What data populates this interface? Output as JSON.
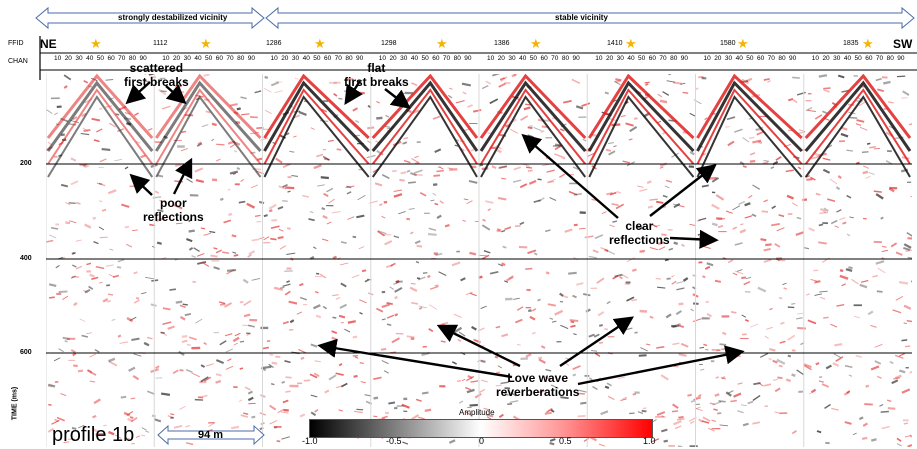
{
  "header": {
    "left_bracket": "strongly destabilized vicinity",
    "right_bracket": "stable vicinity",
    "ffid_label": "FFID",
    "chan_label": "CHAN",
    "dir_left": "NE",
    "dir_right": "SW"
  },
  "ffids": [
    "1112",
    "1286",
    "1298",
    "1386",
    "1410",
    "1580",
    "1835"
  ],
  "channel_ticks": [
    "10",
    "20",
    "30",
    "40",
    "50",
    "60",
    "70",
    "80",
    "90"
  ],
  "time_axis": {
    "label": "TIME (ms)",
    "ticks": [
      "200",
      "400",
      "600"
    ]
  },
  "annotations": {
    "scattered": "scattered\nfirst breaks",
    "flat": "flat\nfirst breaks",
    "poor": "poor\nreflections",
    "clear": "clear\nreflections",
    "love": "Love wave\nreverberations"
  },
  "profile_label": "profile 1b",
  "scale_bar": "94 m",
  "colorbar": {
    "title": "Amplitude",
    "ticks": [
      "-1.0",
      "-0.5",
      "0",
      "0.5",
      "1.0"
    ],
    "neg_color": "#000000",
    "pos_color": "#ff0000"
  },
  "colors": {
    "trace_red": "#e02020",
    "trace_black": "#111111",
    "star": "#f4b400",
    "bracket": "#4a6da7"
  }
}
